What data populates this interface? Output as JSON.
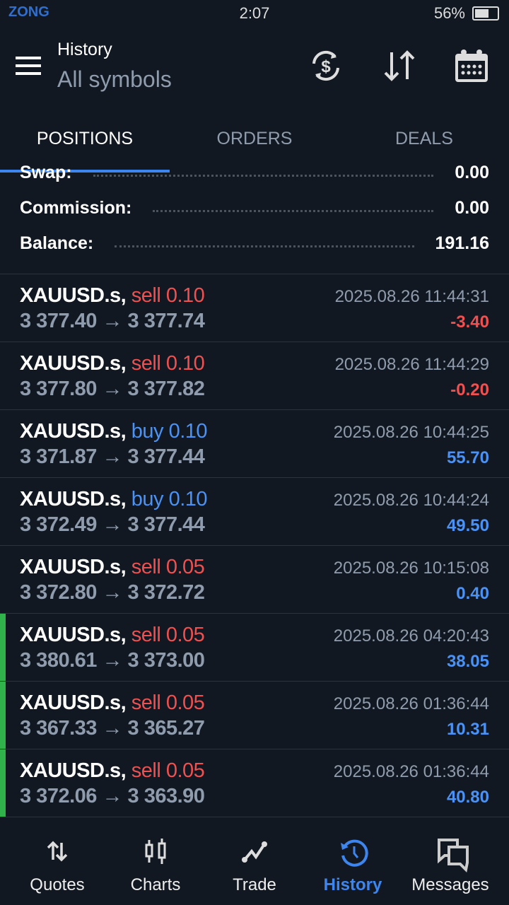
{
  "status": {
    "carrier": "ZONG",
    "time": "2:07",
    "battery": "56%",
    "battery_level": 0.56
  },
  "header": {
    "title": "History",
    "subtitle": "All symbols",
    "icons": [
      "currency-exchange-icon",
      "sort-icon",
      "calendar-icon"
    ]
  },
  "tabs": [
    {
      "label": "POSITIONS",
      "active": true
    },
    {
      "label": "ORDERS"
    },
    {
      "label": "DEALS"
    }
  ],
  "summary": [
    {
      "label": "Swap:",
      "value": "0.00"
    },
    {
      "label": "Commission:",
      "value": "0.00"
    },
    {
      "label": "Balance:",
      "value": "191.16"
    }
  ],
  "colors": {
    "background": "#111821",
    "sell": "#f05050",
    "buy": "#4a92f5",
    "accent": "#3d86f0",
    "marker": "#2fb34a"
  },
  "positions": [
    {
      "symbol": "XAUUSD.s,",
      "side": "sell",
      "volume": "0.10",
      "open": "3 377.40",
      "close": "3 377.74",
      "time": "2025.08.26 11:44:31",
      "profit": "-3.40",
      "marked": false
    },
    {
      "symbol": "XAUUSD.s,",
      "side": "sell",
      "volume": "0.10",
      "open": "3 377.80",
      "close": "3 377.82",
      "time": "2025.08.26 11:44:29",
      "profit": "-0.20",
      "marked": false
    },
    {
      "symbol": "XAUUSD.s,",
      "side": "buy",
      "volume": "0.10",
      "open": "3 371.87",
      "close": "3 377.44",
      "time": "2025.08.26 10:44:25",
      "profit": "55.70",
      "marked": false
    },
    {
      "symbol": "XAUUSD.s,",
      "side": "buy",
      "volume": "0.10",
      "open": "3 372.49",
      "close": "3 377.44",
      "time": "2025.08.26 10:44:24",
      "profit": "49.50",
      "marked": false
    },
    {
      "symbol": "XAUUSD.s,",
      "side": "sell",
      "volume": "0.05",
      "open": "3 372.80",
      "close": "3 372.72",
      "time": "2025.08.26 10:15:08",
      "profit": "0.40",
      "marked": false
    },
    {
      "symbol": "XAUUSD.s,",
      "side": "sell",
      "volume": "0.05",
      "open": "3 380.61",
      "close": "3 373.00",
      "time": "2025.08.26 04:20:43",
      "profit": "38.05",
      "marked": true
    },
    {
      "symbol": "XAUUSD.s,",
      "side": "sell",
      "volume": "0.05",
      "open": "3 367.33",
      "close": "3 365.27",
      "time": "2025.08.26 01:36:44",
      "profit": "10.31",
      "marked": true
    },
    {
      "symbol": "XAUUSD.s,",
      "side": "sell",
      "volume": "0.05",
      "open": "3 372.06",
      "close": "3 363.90",
      "time": "2025.08.26 01:36:44",
      "profit": "40.80",
      "marked": true
    }
  ],
  "nav": [
    {
      "label": "Quotes"
    },
    {
      "label": "Charts"
    },
    {
      "label": "Trade"
    },
    {
      "label": "History",
      "active": true
    },
    {
      "label": "Messages"
    }
  ]
}
